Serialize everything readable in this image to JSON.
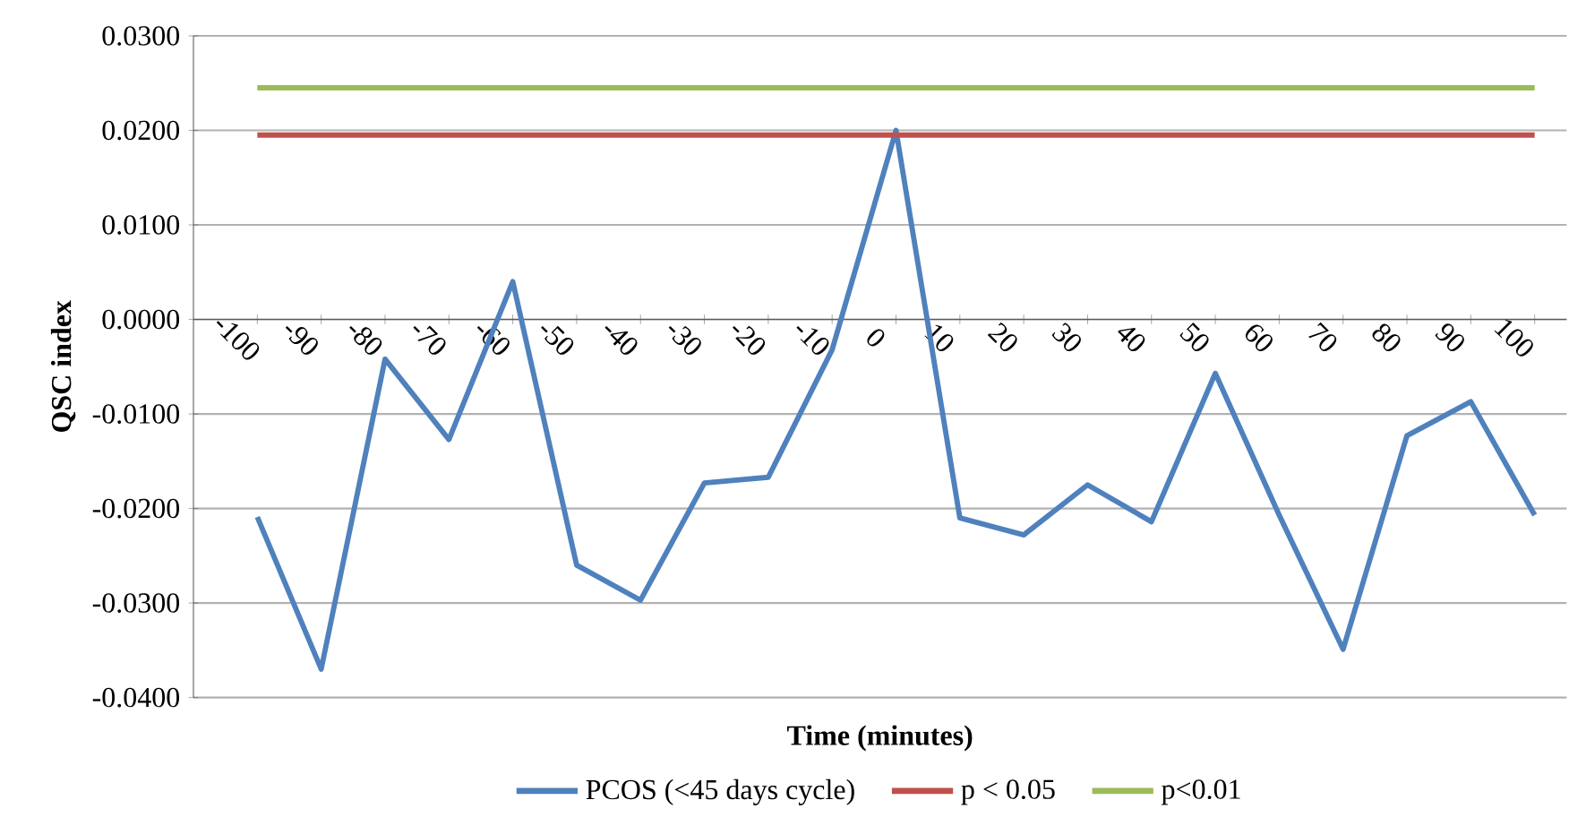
{
  "chart_data": {
    "type": "line",
    "xlabel": "Time (minutes)",
    "ylabel": "QSC index",
    "categories": [
      "-100",
      "-90",
      "-80",
      "-70",
      "-60",
      "-50",
      "-40",
      "-30",
      "-20",
      "-10",
      "0",
      "10",
      "20",
      "30",
      "40",
      "50",
      "60",
      "70",
      "80",
      "90",
      "100"
    ],
    "series": [
      {
        "name": "PCOS (<45 days cycle)",
        "color": "#4f81bd",
        "values": [
          -0.0209,
          -0.037,
          -0.0042,
          -0.0127,
          0.004,
          -0.026,
          -0.0297,
          -0.0173,
          -0.0167,
          -0.0032,
          0.02,
          -0.021,
          -0.0228,
          -0.0175,
          -0.0214,
          -0.0057,
          -0.0207,
          -0.0349,
          -0.0123,
          -0.0087,
          -0.0207
        ]
      },
      {
        "name": "p < 0.05",
        "color": "#c0504d",
        "values": [
          0.0195,
          0.0195,
          0.0195,
          0.0195,
          0.0195,
          0.0195,
          0.0195,
          0.0195,
          0.0195,
          0.0195,
          0.0195,
          0.0195,
          0.0195,
          0.0195,
          0.0195,
          0.0195,
          0.0195,
          0.0195,
          0.0195,
          0.0195,
          0.0195
        ]
      },
      {
        "name": "p<0.01",
        "color": "#9bbb59",
        "values": [
          0.0245,
          0.0245,
          0.0245,
          0.0245,
          0.0245,
          0.0245,
          0.0245,
          0.0245,
          0.0245,
          0.0245,
          0.0245,
          0.0245,
          0.0245,
          0.0245,
          0.0245,
          0.0245,
          0.0245,
          0.0245,
          0.0245,
          0.0245,
          0.0245
        ]
      }
    ],
    "ylim": [
      -0.04,
      0.03
    ],
    "yticks": [
      {
        "value": -0.04,
        "label": "-0.0400"
      },
      {
        "value": -0.03,
        "label": "-0.0300"
      },
      {
        "value": -0.02,
        "label": "-0.0200"
      },
      {
        "value": -0.01,
        "label": "-0.0100"
      },
      {
        "value": 0,
        "label": "0.0000"
      },
      {
        "value": 0.01,
        "label": "0.0100"
      },
      {
        "value": 0.02,
        "label": "0.0200"
      },
      {
        "value": 0.03,
        "label": "0.0300"
      }
    ],
    "grid": "y",
    "legend": "bottom",
    "marker": "none",
    "line_style": "solid"
  }
}
